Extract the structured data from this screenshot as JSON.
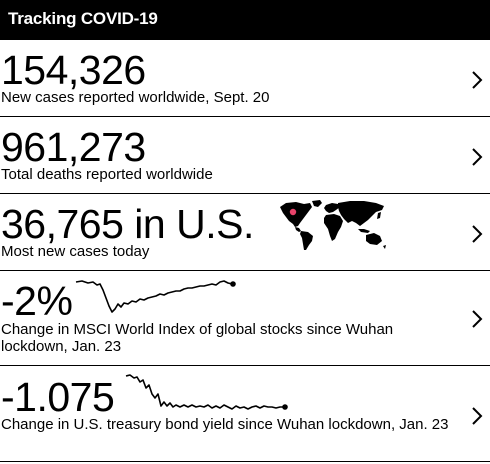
{
  "header": {
    "title": "Tracking COVID-19"
  },
  "rows": [
    {
      "value": "154,326",
      "label": "New cases reported worldwide, Sept. 20"
    },
    {
      "value": "961,273",
      "label": "Total deaths reported worldwide"
    },
    {
      "value": "36,765 in U.S.",
      "label": "Most new cases today"
    },
    {
      "value": "-2%",
      "label": "Change in MSCI World Index of global stocks since Wuhan lockdown, Jan. 23"
    },
    {
      "value": "-1.075",
      "label": "Change in U.S. treasury bond yield since Wuhan lockdown, Jan. 23"
    }
  ],
  "icons": {
    "chevron": "chevron-right-icon",
    "map": "world-map-icon",
    "highlight_color": "#e8436a"
  }
}
